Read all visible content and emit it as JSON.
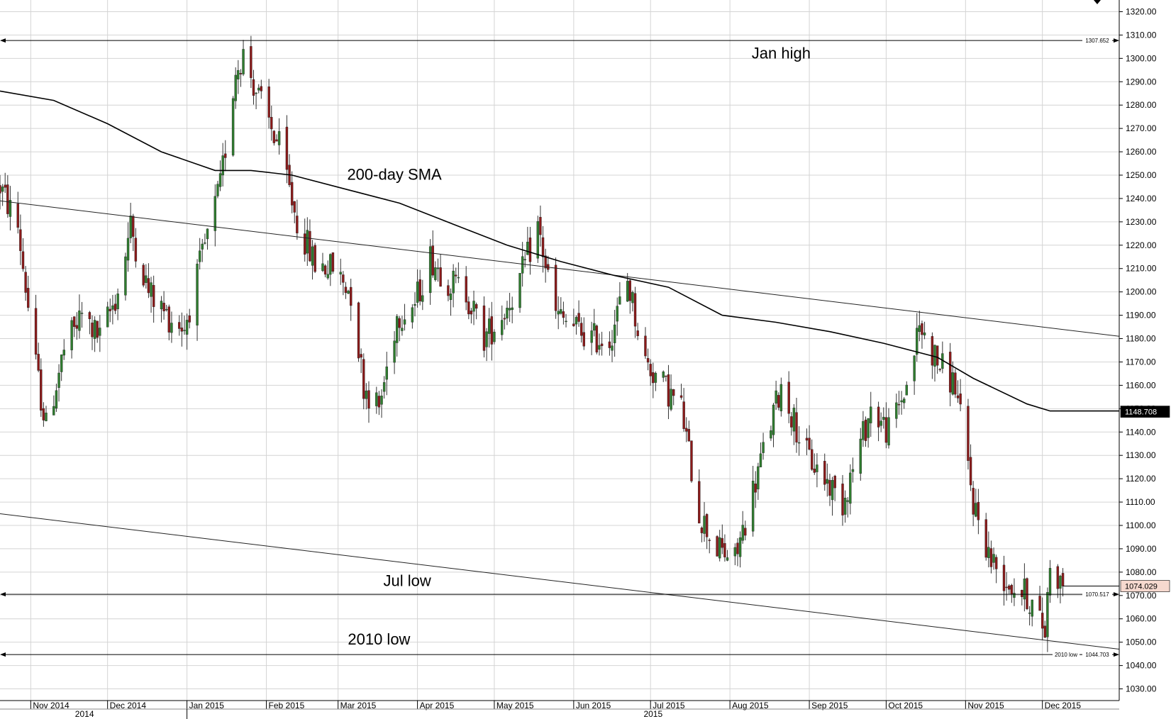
{
  "chart_data": {
    "type": "candlestick",
    "title": "",
    "xlabel": "",
    "ylabel": "",
    "ylim": [
      1025,
      1325
    ],
    "y_ticks": [
      1030,
      1040,
      1050,
      1060,
      1070,
      1080,
      1090,
      1100,
      1110,
      1120,
      1130,
      1140,
      1150,
      1160,
      1170,
      1180,
      1190,
      1200,
      1210,
      1220,
      1230,
      1240,
      1250,
      1260,
      1270,
      1280,
      1290,
      1300,
      1310,
      1320
    ],
    "y_tick_labels": [
      "1030.00",
      "1040.00",
      "1050.00",
      "1060.00",
      "1070.00",
      "1080.00",
      "1090.00",
      "1100.00",
      "1110.00",
      "1120.00",
      "1130.00",
      "1140.00",
      "1150.00",
      "1160.00",
      "1170.00",
      "1180.00",
      "1190.00",
      "1200.00",
      "1210.00",
      "1220.00",
      "1230.00",
      "1240.00",
      "1250.00",
      "1260.00",
      "1270.00",
      "1280.00",
      "1290.00",
      "1300.00",
      "1310.00",
      "1320.00"
    ],
    "x_range": [
      "2014-10-20",
      "2015-12-31"
    ],
    "month_labels": [
      {
        "date": "2014-11-01",
        "label": "Nov 2014"
      },
      {
        "date": "2014-12-01",
        "label": "Dec 2014"
      },
      {
        "date": "2015-01-01",
        "label": "Jan 2015"
      },
      {
        "date": "2015-02-01",
        "label": "Feb 2015"
      },
      {
        "date": "2015-03-01",
        "label": "Mar 2015"
      },
      {
        "date": "2015-04-01",
        "label": "Apr 2015"
      },
      {
        "date": "2015-05-01",
        "label": "May 2015"
      },
      {
        "date": "2015-06-01",
        "label": "Jun 2015"
      },
      {
        "date": "2015-07-01",
        "label": "Jul 2015"
      },
      {
        "date": "2015-08-01",
        "label": "Aug 2015"
      },
      {
        "date": "2015-09-01",
        "label": "Sep 2015"
      },
      {
        "date": "2015-10-01",
        "label": "Oct 2015"
      },
      {
        "date": "2015-11-01",
        "label": "Nov 2015"
      },
      {
        "date": "2015-12-01",
        "label": "Dec 2015"
      }
    ],
    "year_labels": [
      {
        "date": "2014-11-22",
        "label": "2014"
      },
      {
        "date": "2015-07-02",
        "label": "2015"
      }
    ],
    "price_path": [
      [
        "2014-10-20",
        1245
      ],
      [
        "2014-10-27",
        1228
      ],
      [
        "2014-11-03",
        1168
      ],
      [
        "2014-11-07",
        1142
      ],
      [
        "2014-11-14",
        1175
      ],
      [
        "2014-11-21",
        1190
      ],
      [
        "2014-11-28",
        1180
      ],
      [
        "2014-12-05",
        1200
      ],
      [
        "2014-12-10",
        1228
      ],
      [
        "2014-12-17",
        1200
      ],
      [
        "2014-12-24",
        1190
      ],
      [
        "2014-12-31",
        1185
      ],
      [
        "2015-01-07",
        1215
      ],
      [
        "2015-01-14",
        1245
      ],
      [
        "2015-01-20",
        1295
      ],
      [
        "2015-01-23",
        1302
      ],
      [
        "2015-01-30",
        1280
      ],
      [
        "2015-02-06",
        1262
      ],
      [
        "2015-02-13",
        1230
      ],
      [
        "2015-02-20",
        1212
      ],
      [
        "2015-02-27",
        1210
      ],
      [
        "2015-03-06",
        1200
      ],
      [
        "2015-03-11",
        1160
      ],
      [
        "2015-03-17",
        1150
      ],
      [
        "2015-03-24",
        1190
      ],
      [
        "2015-03-31",
        1195
      ],
      [
        "2015-04-06",
        1215
      ],
      [
        "2015-04-13",
        1205
      ],
      [
        "2015-04-20",
        1200
      ],
      [
        "2015-04-27",
        1180
      ],
      [
        "2015-05-04",
        1190
      ],
      [
        "2015-05-11",
        1205
      ],
      [
        "2015-05-18",
        1228
      ],
      [
        "2015-05-25",
        1190
      ],
      [
        "2015-06-01",
        1185
      ],
      [
        "2015-06-08",
        1180
      ],
      [
        "2015-06-15",
        1180
      ],
      [
        "2015-06-22",
        1205
      ],
      [
        "2015-06-29",
        1170
      ],
      [
        "2015-07-06",
        1160
      ],
      [
        "2015-07-13",
        1150
      ],
      [
        "2015-07-20",
        1105
      ],
      [
        "2015-07-27",
        1090
      ],
      [
        "2015-08-03",
        1085
      ],
      [
        "2015-08-10",
        1115
      ],
      [
        "2015-08-21",
        1160
      ],
      [
        "2015-08-31",
        1130
      ],
      [
        "2015-09-07",
        1120
      ],
      [
        "2015-09-14",
        1110
      ],
      [
        "2015-09-21",
        1135
      ],
      [
        "2015-09-25",
        1150
      ],
      [
        "2015-10-02",
        1140
      ],
      [
        "2015-10-09",
        1160
      ],
      [
        "2015-10-14",
        1185
      ],
      [
        "2015-10-21",
        1170
      ],
      [
        "2015-10-28",
        1160
      ],
      [
        "2015-11-04",
        1110
      ],
      [
        "2015-11-11",
        1085
      ],
      [
        "2015-11-18",
        1075
      ],
      [
        "2015-11-25",
        1070
      ],
      [
        "2015-12-02",
        1055
      ],
      [
        "2015-12-04",
        1085
      ],
      [
        "2015-12-09",
        1074
      ]
    ],
    "sma_path": [
      [
        "2014-10-20",
        1286
      ],
      [
        "2014-11-10",
        1282
      ],
      [
        "2014-12-01",
        1272
      ],
      [
        "2014-12-22",
        1260
      ],
      [
        "2015-01-12",
        1252
      ],
      [
        "2015-01-26",
        1252
      ],
      [
        "2015-02-11",
        1250
      ],
      [
        "2015-03-04",
        1244
      ],
      [
        "2015-03-25",
        1238
      ],
      [
        "2015-04-15",
        1229
      ],
      [
        "2015-05-06",
        1220
      ],
      [
        "2015-05-27",
        1213
      ],
      [
        "2015-06-17",
        1207
      ],
      [
        "2015-07-08",
        1202
      ],
      [
        "2015-07-29",
        1190
      ],
      [
        "2015-08-19",
        1187
      ],
      [
        "2015-09-09",
        1183
      ],
      [
        "2015-09-30",
        1178
      ],
      [
        "2015-10-21",
        1172
      ],
      [
        "2015-11-04",
        1163
      ],
      [
        "2015-11-25",
        1152
      ],
      [
        "2015-12-04",
        1149
      ],
      [
        "2015-12-31",
        1149
      ]
    ],
    "trendlines": [
      {
        "from": [
          "2014-10-20",
          1239
        ],
        "to": [
          "2015-12-31",
          1181
        ]
      },
      {
        "from": [
          "2014-10-20",
          1105
        ],
        "to": [
          "2015-12-31",
          1047
        ]
      }
    ],
    "horizontal_levels": [
      {
        "name": "Jan high",
        "value": 1307.652,
        "label": "1307.652"
      },
      {
        "name": "Jul low",
        "value": 1070.517,
        "label": "1070.517"
      },
      {
        "name": "2010 low",
        "value": 1044.703,
        "label": "1044.703"
      }
    ],
    "annotations": [
      {
        "text": "Jan high",
        "x": "2015-08-21",
        "y": 1300
      },
      {
        "text": "200-day SMA",
        "x": "2015-03-23",
        "y": 1248
      },
      {
        "text": "Jul low",
        "x": "2015-03-28",
        "y": 1074
      },
      {
        "text": "2010 low",
        "x": "2015-03-17",
        "y": 1049
      }
    ],
    "level_side_text": {
      "2010 low": "2010 low"
    },
    "price_tags": [
      {
        "value": 1148.708,
        "label": "1148.708",
        "style": "dark"
      },
      {
        "value": 1074.029,
        "label": "1074.029",
        "style": "light"
      }
    ],
    "last_price": 1074.029,
    "sma_value": 1148.708,
    "colors": {
      "up": "#2f7d2f",
      "down": "#8b1a1a",
      "wick": "#333333",
      "grid": "#d4d4d4",
      "line": "#000000",
      "tag_dark": "#000000",
      "tag_light": "#f6d9cf"
    },
    "grid": true
  }
}
